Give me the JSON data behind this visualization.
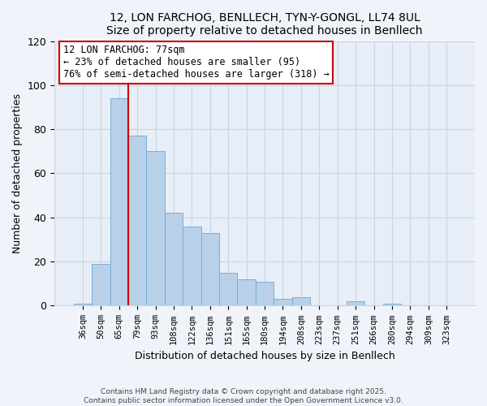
{
  "title": "12, LON FARCHOG, BENLLECH, TYN-Y-GONGL, LL74 8UL",
  "subtitle": "Size of property relative to detached houses in Benllech",
  "xlabel": "Distribution of detached houses by size in Benllech",
  "ylabel": "Number of detached properties",
  "categories": [
    "36sqm",
    "50sqm",
    "65sqm",
    "79sqm",
    "93sqm",
    "108sqm",
    "122sqm",
    "136sqm",
    "151sqm",
    "165sqm",
    "180sqm",
    "194sqm",
    "208sqm",
    "223sqm",
    "237sqm",
    "251sqm",
    "266sqm",
    "280sqm",
    "294sqm",
    "309sqm",
    "323sqm"
  ],
  "values": [
    1,
    19,
    94,
    77,
    70,
    42,
    36,
    33,
    15,
    12,
    11,
    3,
    4,
    0,
    0,
    2,
    0,
    1,
    0,
    0,
    0
  ],
  "bar_color": "#b8d0e8",
  "bar_edge_color": "#7bafd4",
  "vline_x_index": 2,
  "vline_color": "#cc0000",
  "annotation_title": "12 LON FARCHOG: 77sqm",
  "annotation_line1": "← 23% of detached houses are smaller (95)",
  "annotation_line2": "76% of semi-detached houses are larger (318) →",
  "ylim": [
    0,
    120
  ],
  "yticks": [
    0,
    20,
    40,
    60,
    80,
    100,
    120
  ],
  "footer1": "Contains HM Land Registry data © Crown copyright and database right 2025.",
  "footer2": "Contains public sector information licensed under the Open Government Licence v3.0.",
  "bg_color": "#f0f4fa",
  "plot_bg_color": "#e8eef8",
  "grid_color": "#c8d4e4"
}
